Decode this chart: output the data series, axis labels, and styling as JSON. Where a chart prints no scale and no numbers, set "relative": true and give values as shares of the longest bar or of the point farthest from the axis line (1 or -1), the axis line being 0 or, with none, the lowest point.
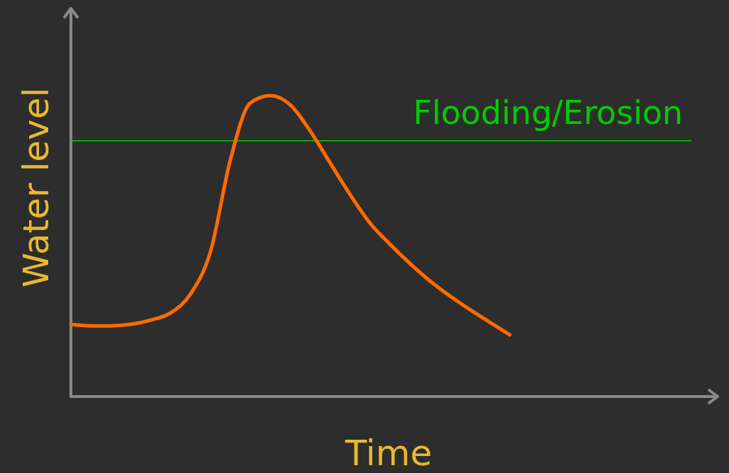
{
  "chart_data": {
    "type": "line",
    "relative": true,
    "xlabel": "Time",
    "ylabel": "Water level",
    "categories": [
      null,
      null,
      null,
      null,
      null,
      null,
      null,
      null,
      null,
      null,
      null,
      null,
      null,
      null,
      null,
      null,
      null,
      null,
      null,
      null,
      null,
      null,
      null,
      null,
      null,
      null,
      null,
      null,
      null,
      null,
      null,
      null,
      null
    ],
    "series": [
      {
        "color": "#ff6a00",
        "values": [
          0.24,
          0.235,
          0.235,
          0.24,
          0.254,
          0.278,
          0.341,
          0.482,
          0.788,
          0.976,
          1,
          0.969,
          0.882,
          0.776,
          0.671,
          0.576,
          0.506,
          0.442,
          0.384,
          0.334,
          0.289,
          0.247,
          0.205,
          null,
          null,
          null,
          null,
          null,
          null,
          null,
          null,
          null,
          null
        ]
      }
    ],
    "ref_lines": [
      {
        "axis": "y",
        "value": 0.85,
        "label": "Flooding/Erosion",
        "color": "#00cc00"
      }
    ],
    "grid": false,
    "marker": "none",
    "line_style": "solid"
  }
}
